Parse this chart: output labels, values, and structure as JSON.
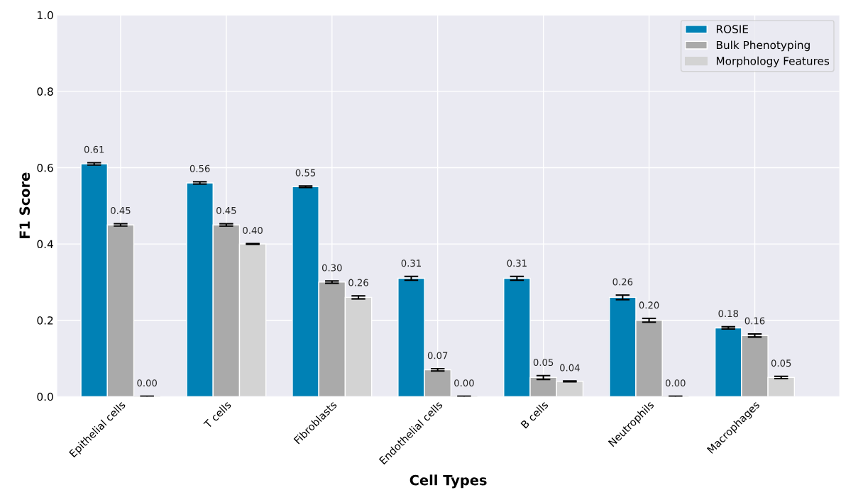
{
  "chart_data": {
    "type": "bar",
    "xlabel": "Cell Types",
    "ylabel": "F1 Score",
    "categories": [
      "Epithelial cells",
      "T cells",
      "Fibroblasts",
      "Endothelial cells",
      "B cells",
      "Neutrophils",
      "Macrophages"
    ],
    "series": [
      {
        "name": "ROSIE",
        "color": "#0081b5",
        "values": [
          0.61,
          0.56,
          0.55,
          0.31,
          0.31,
          0.26,
          0.18
        ],
        "errors": [
          0.003,
          0.003,
          0.002,
          0.005,
          0.005,
          0.006,
          0.003
        ],
        "value_labels": [
          "0.61",
          "0.56",
          "0.55",
          "0.31",
          "0.31",
          "0.26",
          "0.18"
        ]
      },
      {
        "name": "Bulk Phenotyping",
        "color": "#aaaaaa",
        "values": [
          0.45,
          0.45,
          0.3,
          0.07,
          0.05,
          0.2,
          0.16
        ],
        "errors": [
          0.003,
          0.003,
          0.003,
          0.003,
          0.005,
          0.005,
          0.004
        ],
        "value_labels": [
          "0.45",
          "0.45",
          "0.30",
          "0.07",
          "0.05",
          "0.20",
          "0.16"
        ]
      },
      {
        "name": "Morphology Features",
        "color": "#d3d3d3",
        "values": [
          0.0,
          0.4,
          0.26,
          0.0,
          0.04,
          0.0,
          0.05
        ],
        "errors": [
          0.001,
          0.001,
          0.004,
          0.001,
          0.001,
          0.001,
          0.003
        ],
        "value_labels": [
          "0.00",
          "0.40",
          "0.26",
          "0.00",
          "0.04",
          "0.00",
          "0.05"
        ]
      }
    ],
    "ylim": [
      0,
      1.0
    ],
    "yticks": [
      {
        "value": 0,
        "label": "0.0"
      },
      {
        "value": 0.2,
        "label": "0.2"
      },
      {
        "value": 0.4,
        "label": "0.4"
      },
      {
        "value": 0.6,
        "label": "0.6"
      },
      {
        "value": 0.8,
        "label": "0.8"
      },
      {
        "value": 1.0,
        "label": "1.0"
      }
    ],
    "grid": true,
    "legend": "top right"
  }
}
